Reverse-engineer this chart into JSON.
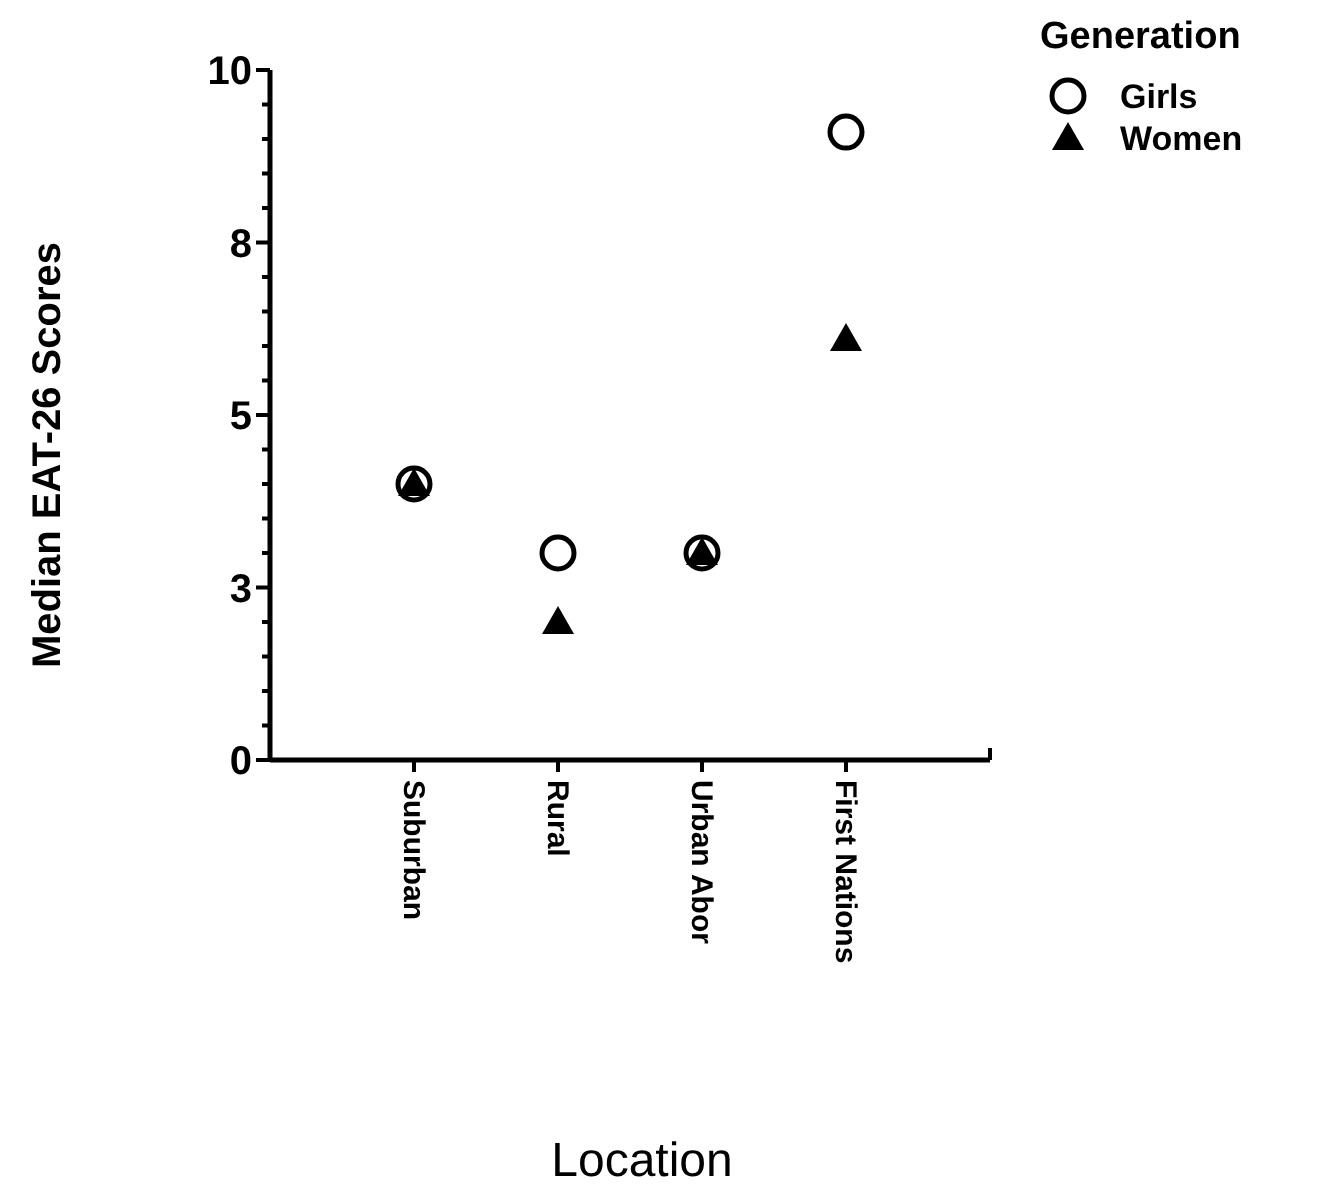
{
  "chart_data": {
    "type": "scatter",
    "xlabel": "Location",
    "ylabel": "Median EAT-26 Scores",
    "legend_title": "Generation",
    "legend": "top right",
    "categories": [
      "Suburban",
      "Rural",
      "Urban Abor",
      "First Nations"
    ],
    "series": [
      {
        "name": "Girls",
        "color": "#000000",
        "marker": "circle",
        "values": [
          4.0,
          3.0,
          3.0,
          9.1
        ]
      },
      {
        "name": "Women",
        "color": "#000000",
        "marker": "triangle",
        "values": [
          4.0,
          2.0,
          3.0,
          6.1
        ]
      }
    ],
    "ylim": [
      0,
      10
    ],
    "yticks": [
      0,
      {
        "value": 0.5,
        "label": null
      },
      {
        "value": 1,
        "label": null
      },
      {
        "value": 1.5,
        "label": null
      },
      {
        "value": 2,
        "label": null
      },
      {
        "value": 2.5,
        "label": "3"
      },
      {
        "value": 3,
        "label": null
      },
      {
        "value": 3.5,
        "label": null
      },
      {
        "value": 4,
        "label": null
      },
      {
        "value": 4.5,
        "label": null
      },
      5,
      {
        "value": 5.5,
        "label": null
      },
      {
        "value": 6,
        "label": null
      },
      {
        "value": 6.5,
        "label": null
      },
      {
        "value": 7,
        "label": null
      },
      {
        "value": 7.5,
        "label": "8"
      },
      {
        "value": 8,
        "label": null
      },
      {
        "value": 8.5,
        "label": null
      },
      {
        "value": 9,
        "label": null
      },
      {
        "value": 9.5,
        "label": null
      },
      10
    ]
  }
}
